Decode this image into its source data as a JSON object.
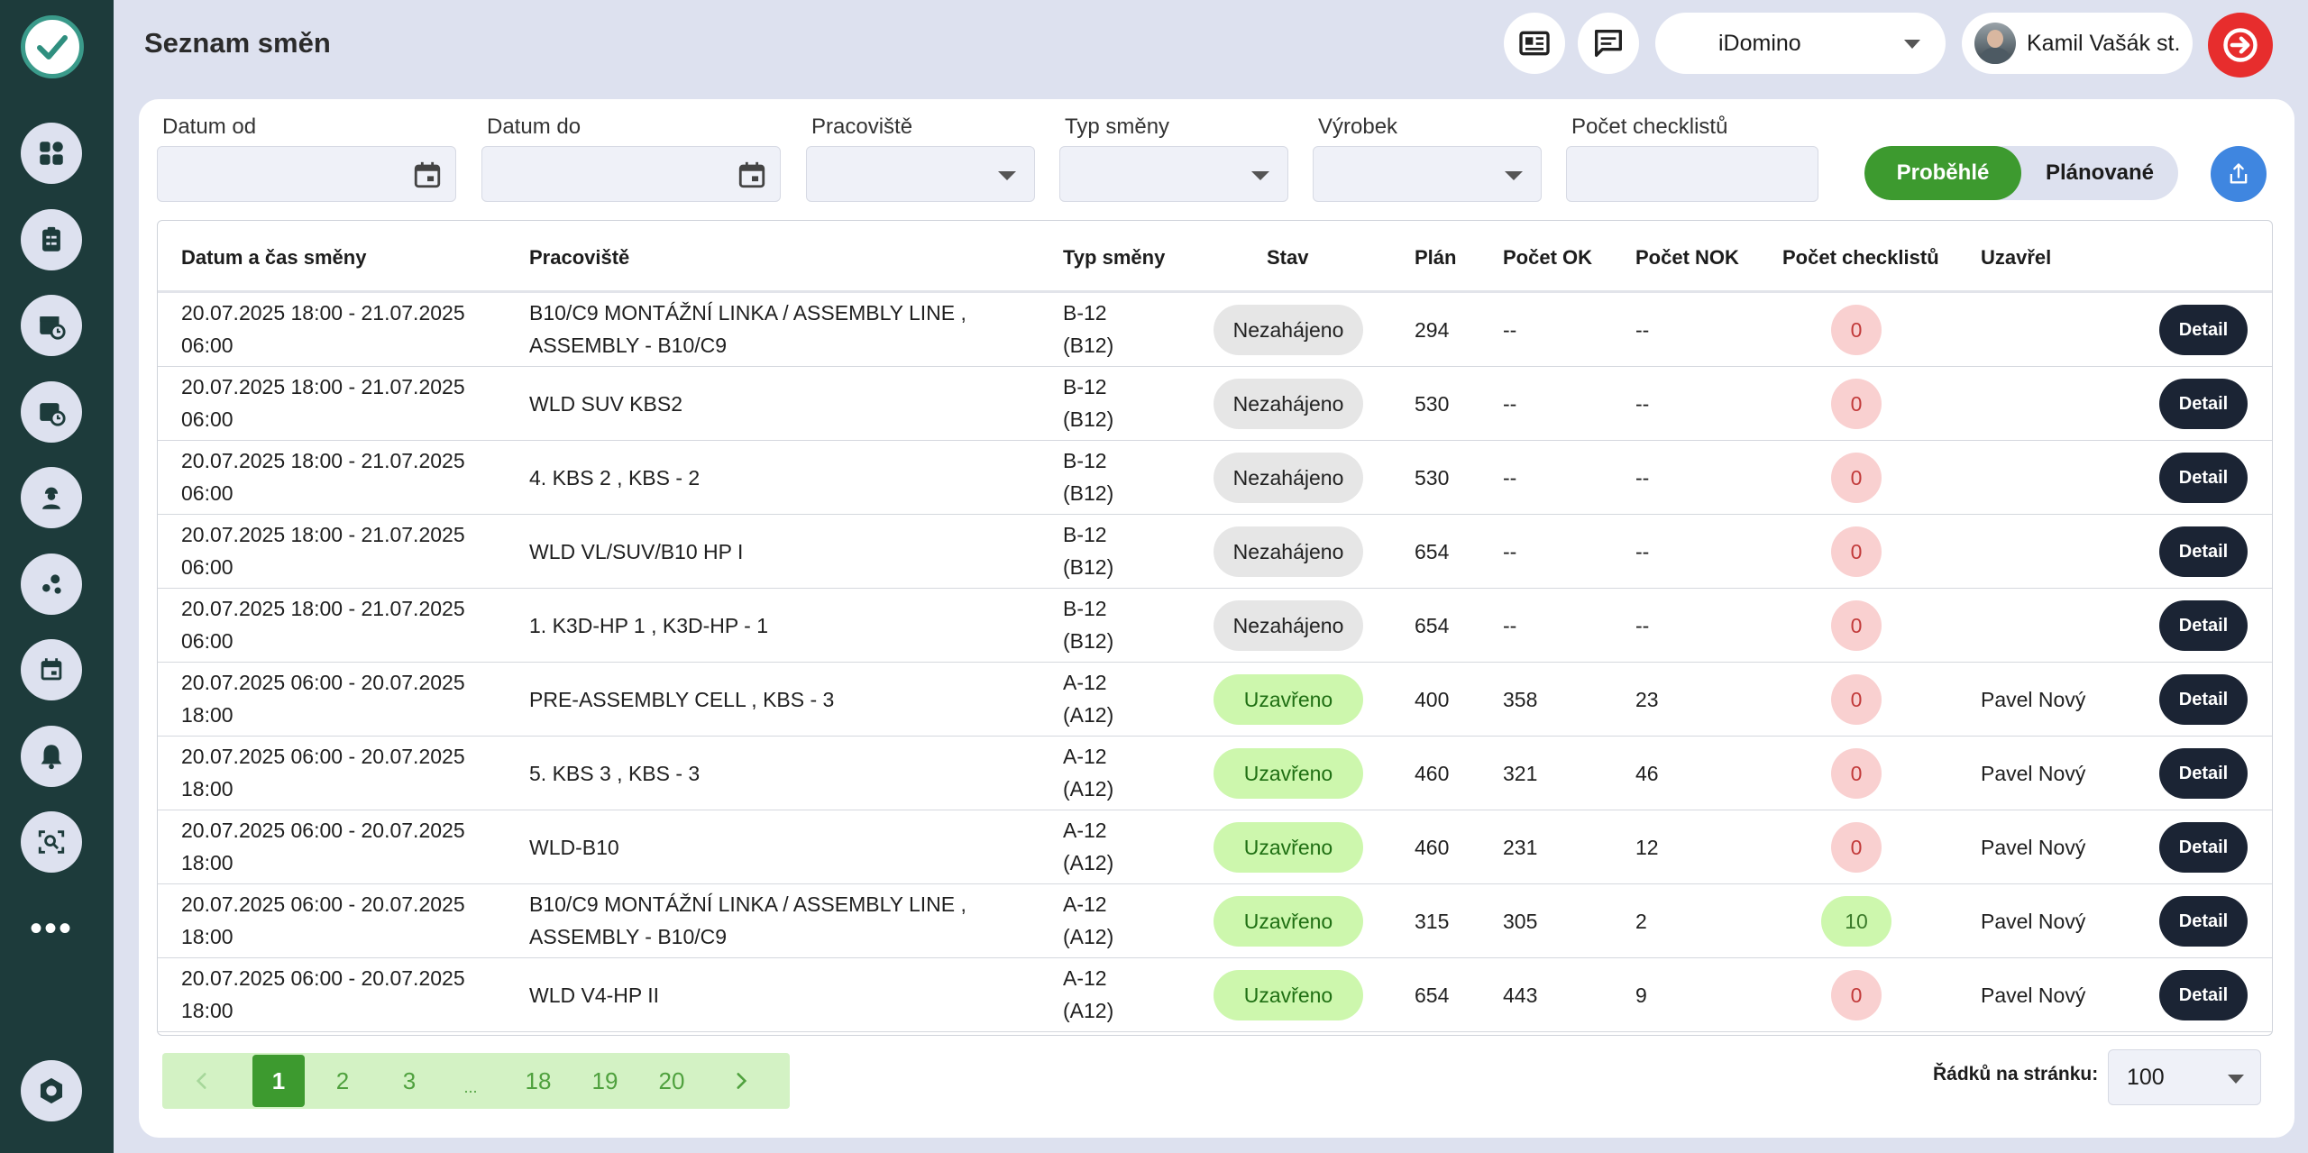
{
  "header": {
    "title": "Seznam směn",
    "company": "iDomino",
    "user_name": "Kamil Vašák st.",
    "icons": [
      "newspaper-icon",
      "chat-icon",
      "logout-icon"
    ]
  },
  "sidebar": {
    "items": [
      "dashboard-icon",
      "checklist-icon",
      "calendar-clock-icon",
      "calendar-clock-alt-icon",
      "worker-icon",
      "nodes-icon",
      "calendar-icon",
      "bell-icon",
      "scan-icon"
    ],
    "more": "•••",
    "settings": "settings-icon"
  },
  "filters": {
    "date_from_label": "Datum od",
    "date_to_label": "Datum do",
    "workplace_label": "Pracoviště",
    "shift_type_label": "Typ směny",
    "product_label": "Výrobek",
    "checklist_count_label": "Počet checklistů",
    "toggle": {
      "past": "Proběhlé",
      "planned": "Plánované",
      "active": "past"
    }
  },
  "table": {
    "columns": {
      "datetime": "Datum a čas směny",
      "workplace": "Pracoviště",
      "type": "Typ směny",
      "state": "Stav",
      "plan": "Plán",
      "ok": "Počet OK",
      "nok": "Počet NOK",
      "checklists": "Počet checklistů",
      "closed_by": "Uzavřel"
    },
    "detail_label": "Detail",
    "rows": [
      {
        "date": "20.07.2025 18:00 - 21.07.2025 06:00",
        "workplace": "B10/C9 MONTÁŽNÍ LINKA / ASSEMBLY LINE , ASSEMBLY - B10/C9",
        "type": "B-12 (B12)",
        "state": "Nezahájeno",
        "plan": "294",
        "ok": "--",
        "nok": "--",
        "checklists": "0",
        "closed_by": ""
      },
      {
        "date": "20.07.2025 18:00 - 21.07.2025 06:00",
        "workplace": "WLD SUV KBS2",
        "type": "B-12 (B12)",
        "state": "Nezahájeno",
        "plan": "530",
        "ok": "--",
        "nok": "--",
        "checklists": "0",
        "closed_by": ""
      },
      {
        "date": "20.07.2025 18:00 - 21.07.2025 06:00",
        "workplace": "4. KBS 2 , KBS - 2",
        "type": "B-12 (B12)",
        "state": "Nezahájeno",
        "plan": "530",
        "ok": "--",
        "nok": "--",
        "checklists": "0",
        "closed_by": ""
      },
      {
        "date": "20.07.2025 18:00 - 21.07.2025 06:00",
        "workplace": "WLD VL/SUV/B10 HP I",
        "type": "B-12 (B12)",
        "state": "Nezahájeno",
        "plan": "654",
        "ok": "--",
        "nok": "--",
        "checklists": "0",
        "closed_by": ""
      },
      {
        "date": "20.07.2025 18:00 - 21.07.2025 06:00",
        "workplace": "1. K3D-HP 1 , K3D-HP - 1",
        "type": "B-12 (B12)",
        "state": "Nezahájeno",
        "plan": "654",
        "ok": "--",
        "nok": "--",
        "checklists": "0",
        "closed_by": ""
      },
      {
        "date": "20.07.2025 06:00 - 20.07.2025 18:00",
        "workplace": "PRE-ASSEMBLY CELL , KBS - 3",
        "type": "A-12 (A12)",
        "state": "Uzavřeno",
        "plan": "400",
        "ok": "358",
        "nok": "23",
        "checklists": "0",
        "closed_by": "Pavel Nový"
      },
      {
        "date": "20.07.2025 06:00 - 20.07.2025 18:00",
        "workplace": "5. KBS 3 , KBS - 3",
        "type": "A-12 (A12)",
        "state": "Uzavřeno",
        "plan": "460",
        "ok": "321",
        "nok": "46",
        "checklists": "0",
        "closed_by": "Pavel Nový"
      },
      {
        "date": "20.07.2025 06:00 - 20.07.2025 18:00",
        "workplace": "WLD-B10",
        "type": "A-12 (A12)",
        "state": "Uzavřeno",
        "plan": "460",
        "ok": "231",
        "nok": "12",
        "checklists": "0",
        "closed_by": "Pavel Nový"
      },
      {
        "date": "20.07.2025 06:00 - 20.07.2025 18:00",
        "workplace": "B10/C9 MONTÁŽNÍ LINKA / ASSEMBLY LINE , ASSEMBLY - B10/C9",
        "type": "A-12 (A12)",
        "state": "Uzavřeno",
        "plan": "315",
        "ok": "305",
        "nok": "2",
        "checklists": "10",
        "closed_by": "Pavel Nový"
      },
      {
        "date": "20.07.2025 06:00 - 20.07.2025 18:00",
        "workplace": "WLD V4-HP II",
        "type": "A-12 (A12)",
        "state": "Uzavřeno",
        "plan": "654",
        "ok": "443",
        "nok": "9",
        "checklists": "0",
        "closed_by": "Pavel Nový"
      }
    ]
  },
  "pagination": {
    "pages": [
      "1",
      "2",
      "3",
      "...",
      "18",
      "19",
      "20"
    ],
    "current": "1",
    "rows_per_page_label": "Řádků na stránku:",
    "rows_per_page": "100"
  },
  "colors": {
    "sidebar": "#1d3b3b",
    "background": "#dde1ef",
    "accent_green": "#3d9a2f",
    "logout_red": "#e72d2d",
    "export_blue": "#3f86e0",
    "detail_dark": "#1b2434"
  }
}
